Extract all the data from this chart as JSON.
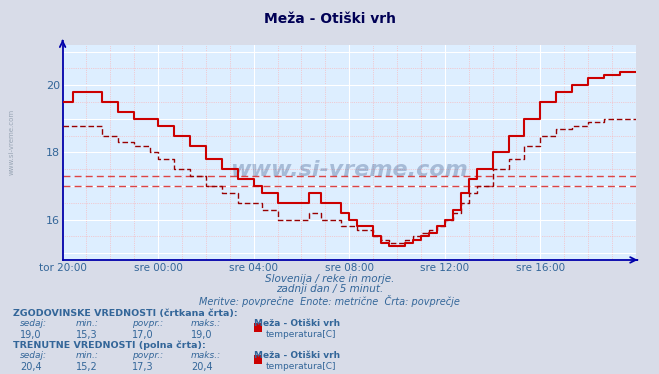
{
  "title": "Meža - Otiški vrh",
  "bg_color": "#d8dce8",
  "plot_bg_color": "#ddeeff",
  "grid_color_major": "#ffffff",
  "grid_color_minor": "#ffaaaa",
  "line_color_solid": "#cc0000",
  "line_color_dashed": "#990000",
  "hline_color": "#dd4444",
  "axis_color": "#0000aa",
  "text_color": "#336699",
  "title_color": "#000055",
  "ylim": [
    14.8,
    21.2
  ],
  "yticks": [
    16,
    18,
    20
  ],
  "hline1": 17.0,
  "hline2": 17.3,
  "xlabel_ticks": [
    "tor 20:00",
    "sre 00:00",
    "sre 04:00",
    "sre 08:00",
    "sre 12:00",
    "sre 16:00"
  ],
  "n_points": 289,
  "subtitle1": "Slovenija / reke in morje.",
  "subtitle2": "zadnji dan / 5 minut.",
  "subtitle3": "Meritve: povprečne  Enote: metrične  Črta: povprečje",
  "legend_hist_label": "ZGODOVINSKE VREDNOSTI (črtkana črta):",
  "legend_curr_label": "TRENUTNE VREDNOSTI (polna črta):",
  "hist_sedaj": "19,0",
  "hist_min": "15,3",
  "hist_povpr": "17,0",
  "hist_maks": "19,0",
  "curr_sedaj": "20,4",
  "curr_min": "15,2",
  "curr_povpr": "17,3",
  "curr_maks": "20,4",
  "station": "Meža - Otiški vrh",
  "measurement": "temperatura[C]",
  "watermark": "www.si-vreme.com"
}
